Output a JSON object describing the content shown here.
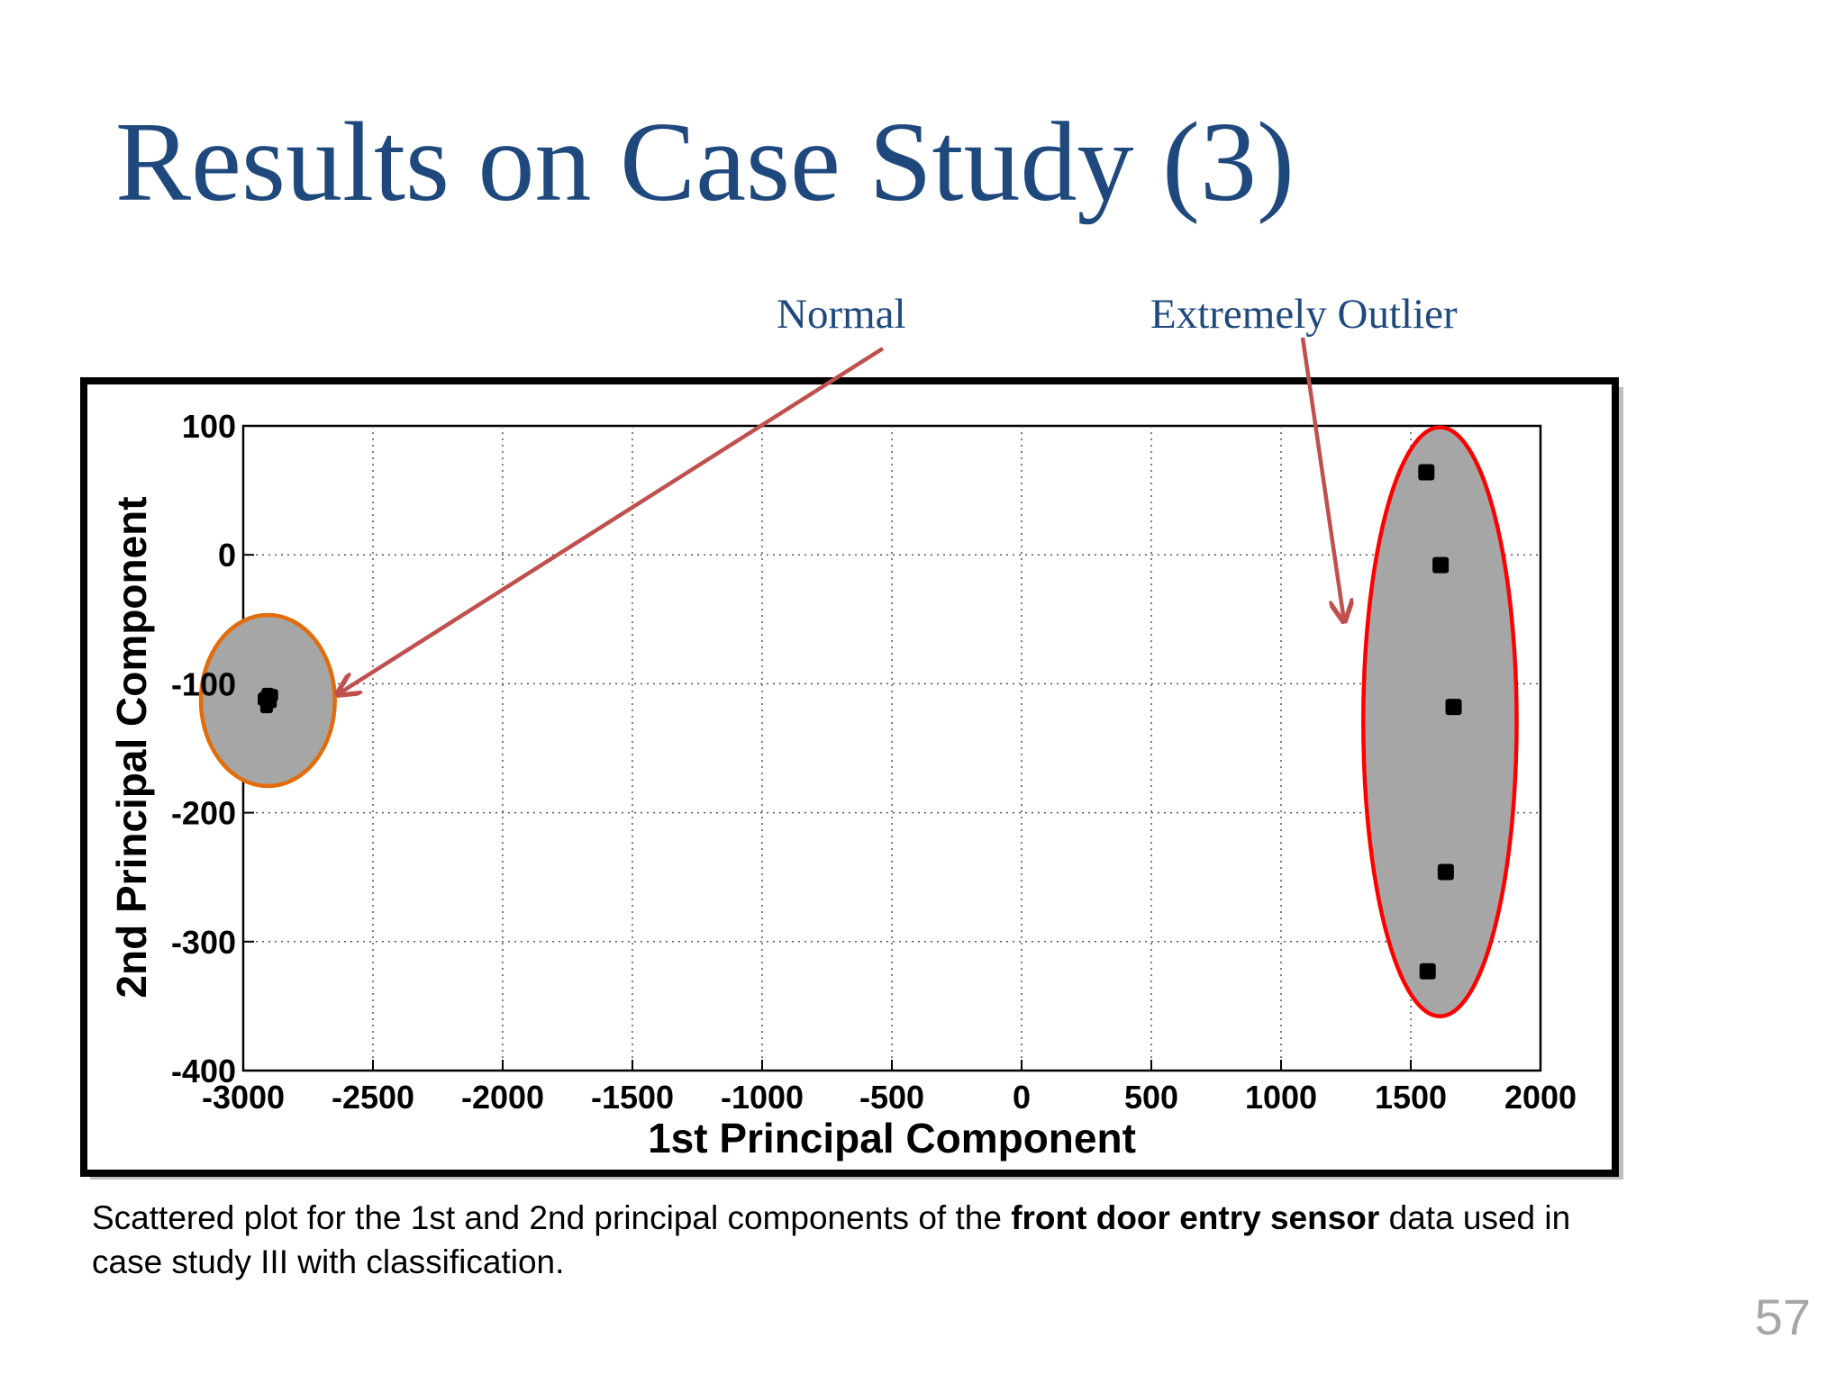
{
  "slide": {
    "title": "Results on Case Study (3)",
    "page_number": "57",
    "callouts": {
      "normal": "Normal",
      "outlier": "Extremely Outlier"
    },
    "caption": {
      "before": "Scattered plot for the 1st and 2nd principal components of the ",
      "bold": "front door entry sensor",
      "after": " data used in case study III with classification."
    }
  },
  "colors": {
    "title": "#1f497d",
    "arrow": "#c0504d",
    "normal_ellipse": "#e36c0a",
    "outlier_ellipse": "#ff0000",
    "ellipse_fill": "#a6a6a6",
    "marker": "#000000"
  },
  "chart_data": {
    "type": "scatter",
    "xlabel": "1st Principal Component",
    "ylabel": "2nd Principal Component",
    "xlim": [
      -3000,
      2000
    ],
    "ylim": [
      -400,
      100
    ],
    "xticks": [
      -3000,
      -2500,
      -2000,
      -1500,
      -1000,
      -500,
      0,
      500,
      1000,
      1500,
      2000
    ],
    "yticks": [
      -400,
      -300,
      -200,
      -100,
      0,
      100
    ],
    "grid": true,
    "series": [
      {
        "group": "normal",
        "points": [
          {
            "x": -2920,
            "y": -112
          },
          {
            "x": -2905,
            "y": -108
          },
          {
            "x": -2895,
            "y": -114
          },
          {
            "x": -2910,
            "y": -118
          },
          {
            "x": -2900,
            "y": -110
          },
          {
            "x": -2915,
            "y": -111
          },
          {
            "x": -2890,
            "y": -109
          },
          {
            "x": -2908,
            "y": -115
          }
        ]
      },
      {
        "group": "outlier",
        "points": [
          {
            "x": 1560,
            "y": 64
          },
          {
            "x": 1615,
            "y": -8
          },
          {
            "x": 1665,
            "y": -118
          },
          {
            "x": 1635,
            "y": -246
          },
          {
            "x": 1565,
            "y": -323
          }
        ]
      }
    ],
    "annotations": [
      {
        "label": "Normal",
        "target": "normal"
      },
      {
        "label": "Extremely Outlier",
        "target": "outlier"
      }
    ]
  }
}
